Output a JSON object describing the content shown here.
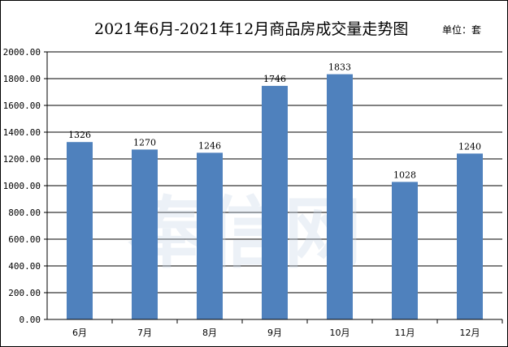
{
  "chart_data": {
    "type": "bar",
    "title": "2021年6月-2021年12月商品房成交量走势图",
    "unit_label": "单位：套",
    "categories": [
      "6月",
      "7月",
      "8月",
      "9月",
      "10月",
      "11月",
      "12月"
    ],
    "values": [
      1326,
      1270,
      1246,
      1746,
      1833,
      1028,
      1240
    ],
    "data_labels": [
      "1326",
      "1270",
      "1246",
      "1746",
      "1833",
      "1028",
      "1240"
    ],
    "y_ticks": [
      "0.00",
      "200.00",
      "400.00",
      "600.00",
      "800.00",
      "1000.00",
      "1200.00",
      "1400.00",
      "1600.00",
      "1800.00",
      "2000.00"
    ],
    "ylim": [
      0,
      2000
    ],
    "grid": true,
    "bar_color": "#4f81bd",
    "watermark": "奉信网"
  }
}
